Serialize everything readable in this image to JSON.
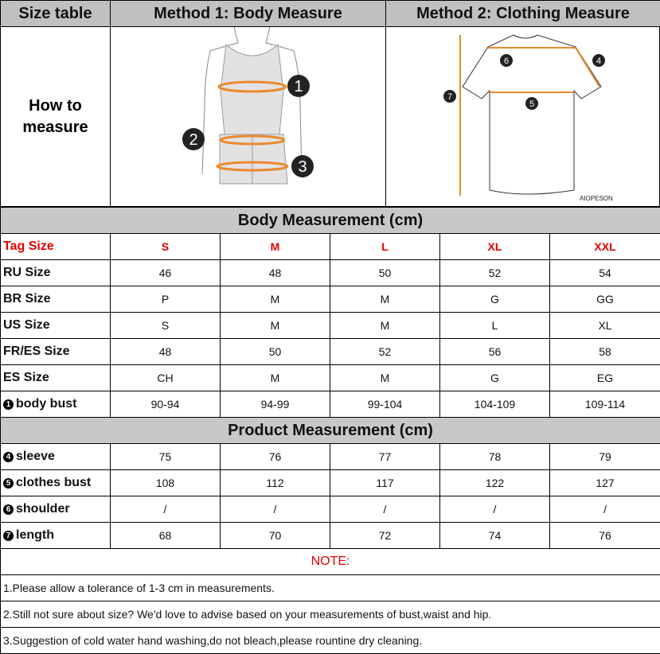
{
  "header": {
    "size_table": "Size table",
    "method1": "Method 1: Body  Measure",
    "method2": "Method 2: Clothing Measure"
  },
  "how_to": {
    "line1": "How to",
    "line2": "measure"
  },
  "figure": {
    "body_markers": [
      "1",
      "2",
      "3"
    ],
    "shirt_markers": [
      "4",
      "5",
      "6",
      "7"
    ],
    "brand": "AIOPESON",
    "accent": "#e98a2e"
  },
  "body_section": "Body Measurement (cm)",
  "product_section": "Product Measurement (cm)",
  "sizes": {
    "label": "Tag Size",
    "values": [
      "S",
      "M",
      "L",
      "XL",
      "XXL"
    ]
  },
  "body_rows": [
    {
      "label": "RU Size",
      "values": [
        "46",
        "48",
        "50",
        "52",
        "54"
      ]
    },
    {
      "label": "BR Size",
      "values": [
        "P",
        "M",
        "M",
        "G",
        "GG"
      ]
    },
    {
      "label": "US Size",
      "values": [
        "S",
        "M",
        "M",
        "L",
        "XL"
      ]
    },
    {
      "label": "FR/ES Size",
      "values": [
        "48",
        "50",
        "52",
        "56",
        "58"
      ]
    },
    {
      "label": "ES Size",
      "values": [
        "CH",
        "M",
        "M",
        "G",
        "EG"
      ]
    },
    {
      "num": "1",
      "label": "body bust",
      "values": [
        "90-94",
        "94-99",
        "99-104",
        "104-109",
        "109-114"
      ]
    }
  ],
  "product_rows": [
    {
      "num": "4",
      "label": "sleeve",
      "values": [
        "75",
        "76",
        "77",
        "78",
        "79"
      ]
    },
    {
      "num": "5",
      "label": "clothes bust",
      "values": [
        "108",
        "112",
        "117",
        "122",
        "127"
      ]
    },
    {
      "num": "6",
      "label": "shoulder",
      "values": [
        "/",
        "/",
        "/",
        "/",
        "/"
      ]
    },
    {
      "num": "7",
      "label": "length",
      "values": [
        "68",
        "70",
        "72",
        "74",
        "76"
      ]
    }
  ],
  "note": {
    "title": "NOTE:",
    "items": [
      "1.Please allow a tolerance of 1-3 cm in measurements.",
      "2.Still not sure about size? We'd love to advise based on your measurements of bust,waist and hip.",
      "3.Suggestion of cold water hand washing,do not bleach,please rountine dry cleaning."
    ]
  }
}
